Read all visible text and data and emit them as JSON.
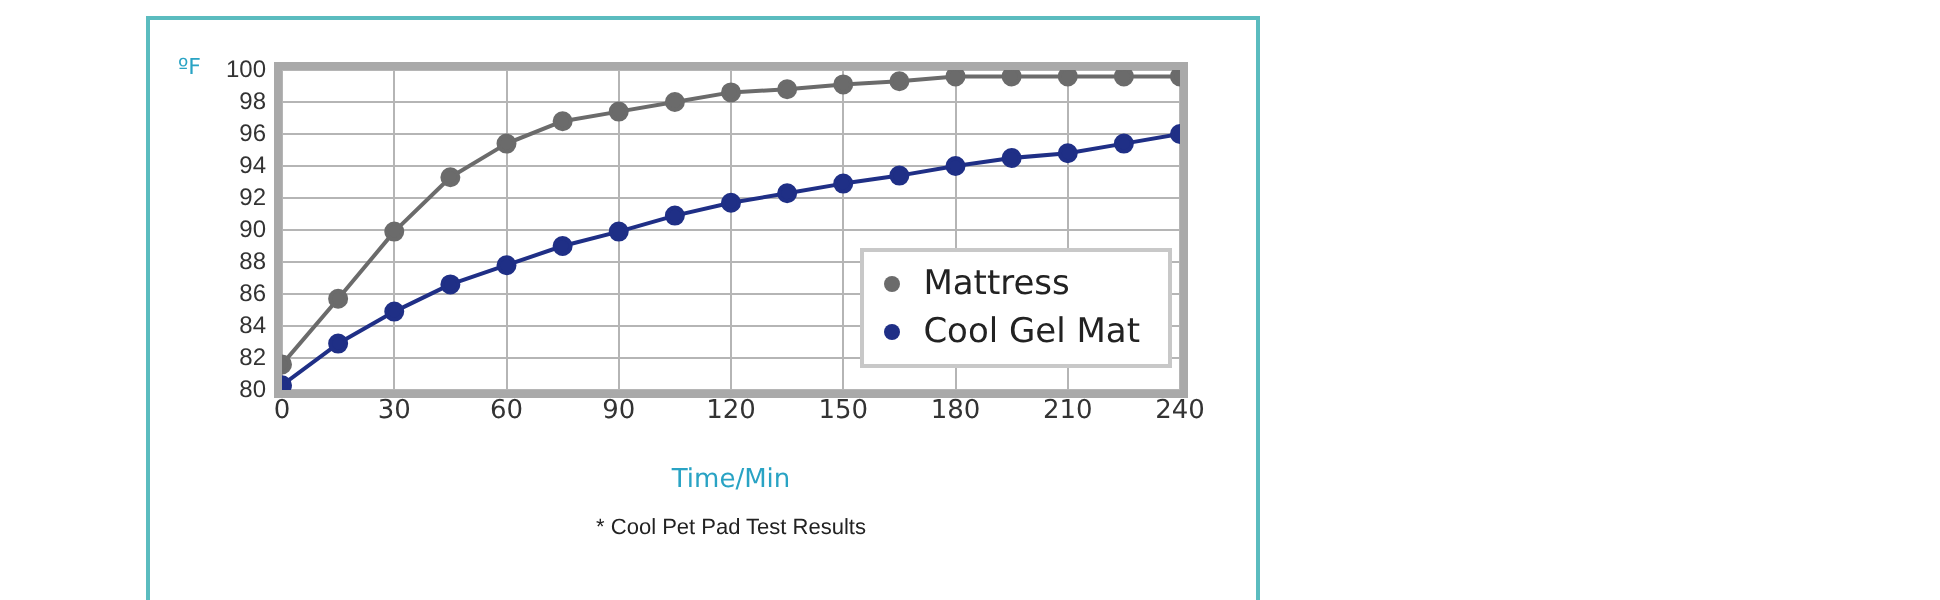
{
  "chart_data": {
    "type": "line",
    "xlabel": "Time/Min",
    "ylabel": "ºF",
    "annotations": [
      "* Cool Pet Pad Test Results"
    ],
    "x": [
      0,
      15,
      30,
      45,
      60,
      75,
      90,
      105,
      120,
      135,
      150,
      165,
      180,
      195,
      210,
      225,
      240
    ],
    "series": [
      {
        "name": "Mattress",
        "color": "#6b6b6b",
        "values": [
          81.6,
          85.7,
          89.9,
          93.3,
          95.4,
          96.8,
          97.4,
          98.0,
          98.6,
          98.8,
          99.1,
          99.3,
          99.6,
          99.6,
          99.6,
          99.6,
          99.6
        ]
      },
      {
        "name": "Cool Gel Mat",
        "color": "#1f2f86",
        "values": [
          80.3,
          82.9,
          84.9,
          86.6,
          87.8,
          89.0,
          89.9,
          90.9,
          91.7,
          92.3,
          92.9,
          93.4,
          94.0,
          94.5,
          94.8,
          95.4,
          96.0
        ]
      }
    ],
    "xlim": [
      0,
      240
    ],
    "xticks": [
      0,
      30,
      60,
      90,
      120,
      150,
      180,
      210,
      240
    ],
    "ylim": [
      80,
      100
    ],
    "yticks": [
      80,
      82,
      84,
      86,
      88,
      90,
      92,
      94,
      96,
      98,
      100
    ],
    "grid": true,
    "legend": "right",
    "marker": "circle",
    "line_style": "solid"
  }
}
